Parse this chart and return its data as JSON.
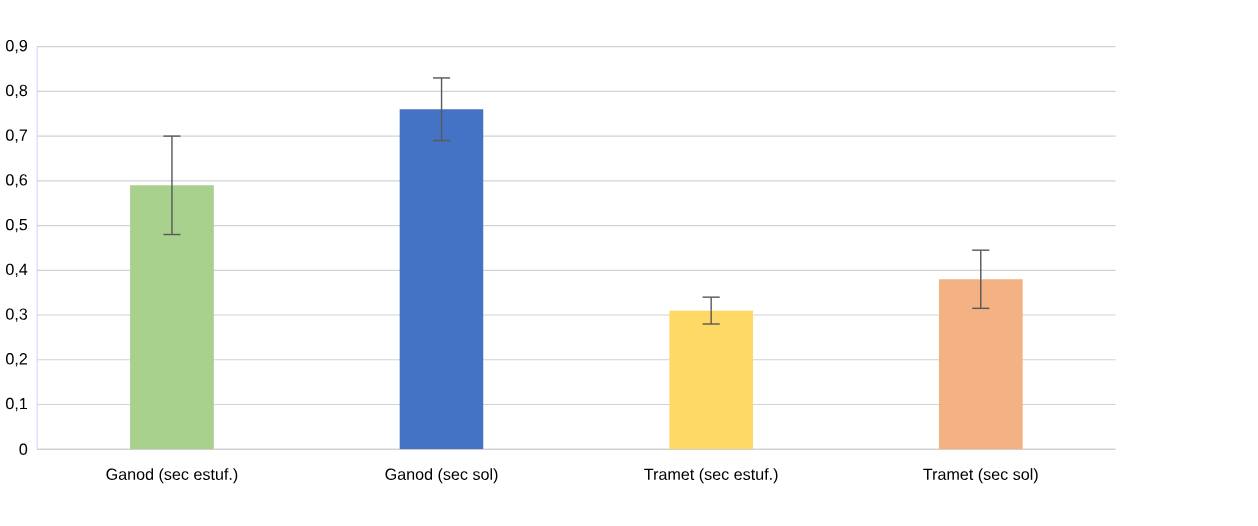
{
  "chart_data": {
    "type": "bar",
    "categories": [
      "Ganod (sec estuf.)",
      "Ganod (sec sol)",
      "Tramet (sec estuf.)",
      "Tramet (sec sol)"
    ],
    "values": [
      0.59,
      0.76,
      0.31,
      0.38
    ],
    "errors": [
      0.11,
      0.07,
      0.03,
      0.065
    ],
    "colors": [
      "#a9d18e",
      "#4472c4",
      "#ffd966",
      "#f4b183"
    ],
    "ylim": [
      0,
      0.9
    ],
    "yticks": [
      {
        "value": 0,
        "label": "0"
      },
      {
        "value": 0.1,
        "label": "0,1"
      },
      {
        "value": 0.2,
        "label": "0,2"
      },
      {
        "value": 0.3,
        "label": "0,3"
      },
      {
        "value": 0.4,
        "label": "0,4"
      },
      {
        "value": 0.5,
        "label": "0,5"
      },
      {
        "value": 0.6,
        "label": "0,6"
      },
      {
        "value": 0.7,
        "label": "0,7"
      },
      {
        "value": 0.8,
        "label": "0,8"
      },
      {
        "value": 0.9,
        "label": "0,9"
      }
    ],
    "grid": "y"
  }
}
